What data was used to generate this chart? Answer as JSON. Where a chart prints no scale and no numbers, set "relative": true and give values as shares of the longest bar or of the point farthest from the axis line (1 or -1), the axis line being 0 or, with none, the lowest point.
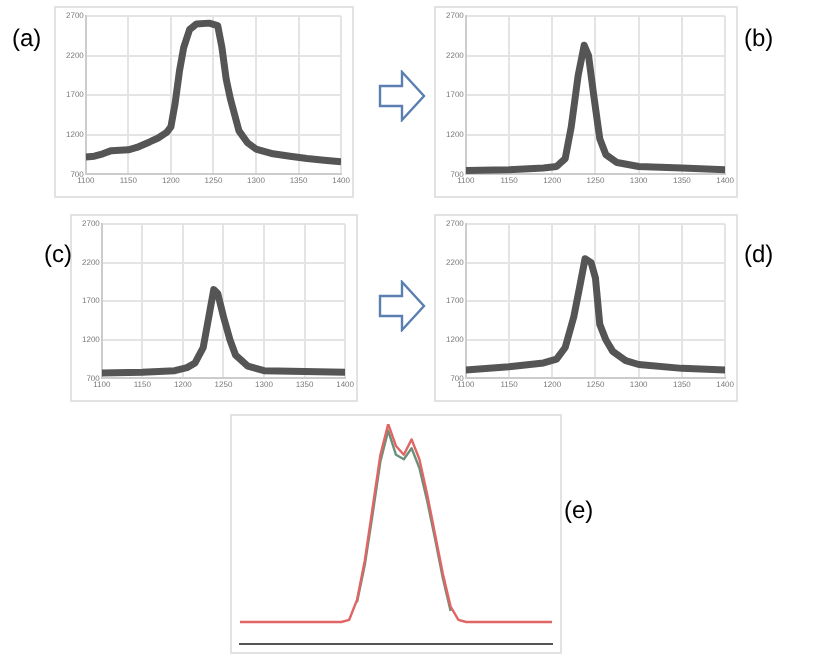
{
  "chart_data": [
    {
      "type": "line",
      "title": "(a)",
      "color": "#555555",
      "marker": "none",
      "grid": true,
      "xlim": [
        1100,
        1400
      ],
      "xticks": [
        1100,
        1150,
        1200,
        1250,
        1300,
        1350,
        1400
      ],
      "ylim": [
        700,
        2700
      ],
      "yticks": [
        700,
        1200,
        1700,
        2200,
        2700
      ],
      "x": [
        1100,
        1110,
        1120,
        1130,
        1150,
        1160,
        1175,
        1185,
        1195,
        1200,
        1205,
        1210,
        1215,
        1222,
        1230,
        1245,
        1255,
        1260,
        1265,
        1270,
        1280,
        1290,
        1300,
        1320,
        1340,
        1360,
        1380,
        1400
      ],
      "values": [
        920,
        930,
        960,
        1000,
        1010,
        1040,
        1110,
        1160,
        1230,
        1300,
        1600,
        2000,
        2300,
        2530,
        2600,
        2610,
        2580,
        2300,
        1900,
        1650,
        1250,
        1100,
        1020,
        960,
        930,
        900,
        880,
        860
      ]
    },
    {
      "type": "line",
      "title": "(b)",
      "color": "#555555",
      "marker": "none",
      "grid": true,
      "xlim": [
        1100,
        1400
      ],
      "xticks": [
        1100,
        1150,
        1200,
        1250,
        1300,
        1350,
        1400
      ],
      "ylim": [
        700,
        2700
      ],
      "yticks": [
        700,
        1200,
        1700,
        2200,
        2700
      ],
      "x": [
        1100,
        1150,
        1190,
        1205,
        1215,
        1222,
        1230,
        1237,
        1242,
        1248,
        1255,
        1262,
        1275,
        1300,
        1350,
        1400
      ],
      "values": [
        750,
        760,
        780,
        800,
        900,
        1300,
        1950,
        2330,
        2200,
        1700,
        1150,
        950,
        850,
        800,
        780,
        760
      ]
    },
    {
      "type": "line",
      "title": "(c)",
      "color": "#555555",
      "marker": "none",
      "grid": true,
      "xlim": [
        1100,
        1400
      ],
      "xticks": [
        1100,
        1150,
        1200,
        1250,
        1300,
        1350,
        1400
      ],
      "ylim": [
        700,
        2700
      ],
      "yticks": [
        700,
        1200,
        1700,
        2200,
        2700
      ],
      "x": [
        1100,
        1150,
        1190,
        1205,
        1215,
        1225,
        1232,
        1238,
        1243,
        1250,
        1258,
        1265,
        1280,
        1300,
        1350,
        1400
      ],
      "values": [
        770,
        780,
        800,
        840,
        900,
        1100,
        1500,
        1850,
        1800,
        1500,
        1200,
        1000,
        860,
        800,
        790,
        780
      ]
    },
    {
      "type": "line",
      "title": "(d)",
      "color": "#555555",
      "marker": "none",
      "grid": true,
      "xlim": [
        1100,
        1400
      ],
      "xticks": [
        1100,
        1150,
        1200,
        1250,
        1300,
        1350,
        1400
      ],
      "ylim": [
        700,
        2700
      ],
      "yticks": [
        700,
        1200,
        1700,
        2200,
        2700
      ],
      "x": [
        1100,
        1150,
        1190,
        1205,
        1215,
        1225,
        1232,
        1238,
        1245,
        1250,
        1255,
        1262,
        1270,
        1285,
        1300,
        1350,
        1400
      ],
      "values": [
        810,
        850,
        900,
        950,
        1100,
        1500,
        1900,
        2250,
        2200,
        2000,
        1400,
        1200,
        1050,
        930,
        880,
        830,
        810
      ]
    },
    {
      "type": "line",
      "title": "(e)",
      "relative": true,
      "grid": false,
      "marker": "none",
      "categories": [
        null,
        null,
        null,
        null,
        null,
        null,
        null,
        null,
        null,
        null,
        null,
        null,
        null,
        null,
        null,
        null,
        null,
        null,
        null,
        null,
        null,
        null,
        null,
        null,
        null,
        null,
        null,
        null,
        null,
        null,
        null,
        null,
        null,
        null,
        null,
        null,
        null,
        null,
        null,
        null,
        null
      ],
      "series": [
        {
          "color": "#e06666",
          "values": [
            0.1,
            0.1,
            0.1,
            0.1,
            0.1,
            0.1,
            0.1,
            0.1,
            0.1,
            0.1,
            0.1,
            0.1,
            0.1,
            0.1,
            0.11,
            0.2,
            0.38,
            0.62,
            0.86,
            1.0,
            0.9,
            0.86,
            0.93,
            0.84,
            0.68,
            0.5,
            0.32,
            0.17,
            0.11,
            0.1,
            0.1,
            0.1,
            0.1,
            0.1,
            0.1,
            0.1,
            0.1,
            0.1,
            0.1,
            0.1,
            0.1
          ]
        },
        {
          "color": "#6b8f7a",
          "values": [
            null,
            null,
            null,
            null,
            null,
            null,
            null,
            null,
            null,
            null,
            null,
            null,
            null,
            null,
            null,
            0.19,
            0.36,
            0.59,
            0.83,
            0.97,
            0.86,
            0.84,
            0.89,
            0.8,
            0.65,
            0.48,
            0.3,
            0.15,
            null,
            null,
            null,
            null,
            null,
            null,
            null,
            null,
            null,
            null,
            null,
            null,
            null
          ]
        }
      ]
    }
  ]
}
